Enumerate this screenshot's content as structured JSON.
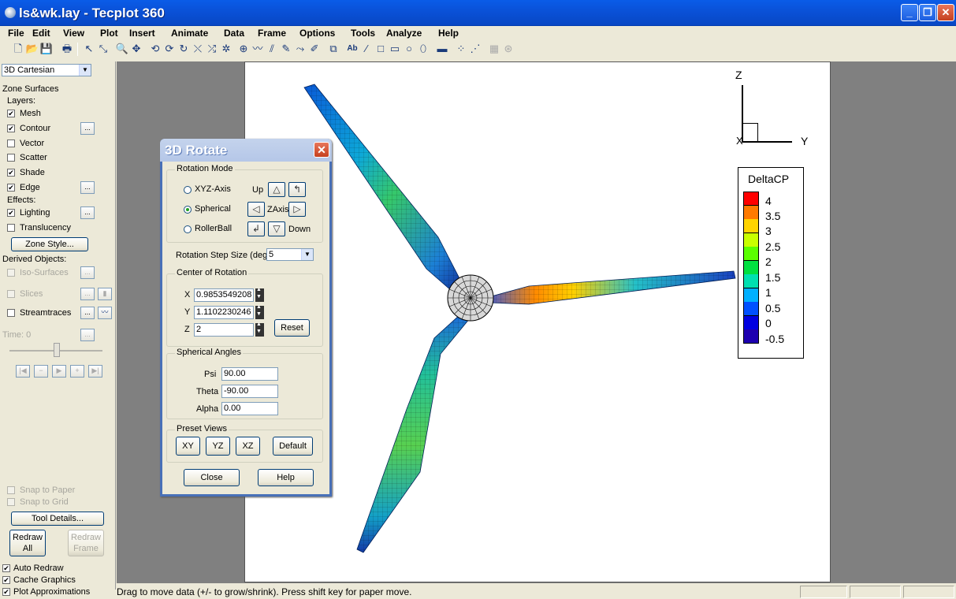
{
  "window": {
    "title": "ls&wk.lay - Tecplot 360"
  },
  "menu": [
    "File",
    "Edit",
    "View",
    "Plot",
    "Insert",
    "Animate",
    "Data",
    "Frame",
    "Options",
    "Tools",
    "Analyze",
    "Help"
  ],
  "toolbar": {
    "text_tool_label": "Ab"
  },
  "sidebar": {
    "plot_type": "3D Cartesian",
    "zone_surfaces": "Zone Surfaces",
    "layers": "Layers:",
    "mesh": "Mesh",
    "contour": "Contour",
    "vector": "Vector",
    "scatter": "Scatter",
    "shade": "Shade",
    "edge": "Edge",
    "effects": "Effects:",
    "lighting": "Lighting",
    "translucency": "Translucency",
    "zone_style": "Zone Style...",
    "derived": "Derived Objects:",
    "iso_surfaces": "Iso-Surfaces",
    "slices": "Slices",
    "streamtraces": "Streamtraces",
    "time": "Time: 0",
    "ellipsis": "...",
    "snap_paper": "Snap to Paper",
    "snap_grid": "Snap to Grid",
    "tool_details": "Tool Details...",
    "redraw_all_1": "Redraw",
    "redraw_all_2": "All",
    "redraw_frame_1": "Redraw",
    "redraw_frame_2": "Frame",
    "auto_redraw": "Auto Redraw",
    "cache_graphics": "Cache Graphics",
    "plot_approx": "Plot Approximations"
  },
  "dialog": {
    "title": "3D Rotate",
    "rotation_mode": "Rotation Mode",
    "xyz_axis": "XYZ-Axis",
    "spherical": "Spherical",
    "rollerball": "RollerBall",
    "up": "Up",
    "zaxis": "ZAxis",
    "down": "Down",
    "step_label": "Rotation Step Size (deg)",
    "step_value": "5",
    "center": "Center of Rotation",
    "x_label": "X",
    "y_label": "Y",
    "z_label": "Z",
    "x_value": "0.9853549208",
    "y_value": "1.1102230246",
    "z_value": "2",
    "reset": "Reset",
    "spherical_angles": "Spherical Angles",
    "psi_label": "Psi",
    "theta_label": "Theta",
    "alpha_label": "Alpha",
    "psi": "90.00",
    "theta": "-90.00",
    "alpha": "0.00",
    "preset_views": "Preset Views",
    "xy": "XY",
    "yz": "YZ",
    "xz": "XZ",
    "default": "Default",
    "close": "Close",
    "help": "Help"
  },
  "plot": {
    "axis_z": "Z",
    "axis_x": "X",
    "axis_y": "Y",
    "legend_title": "DeltaCP",
    "legend_labels": [
      "4",
      "3.5",
      "3",
      "2.5",
      "2",
      "1.5",
      "1",
      "0.5",
      "0",
      "-0.5"
    ],
    "legend_colors": [
      "#ff0000",
      "#ff7a00",
      "#ffd400",
      "#c8ff00",
      "#5aff00",
      "#00e040",
      "#00e0b0",
      "#00b0ff",
      "#0050ff",
      "#0000e0",
      "#1e00b0"
    ]
  },
  "status": {
    "message": "Drag to move data (+/- to grow/shrink). Press shift key for paper move."
  }
}
